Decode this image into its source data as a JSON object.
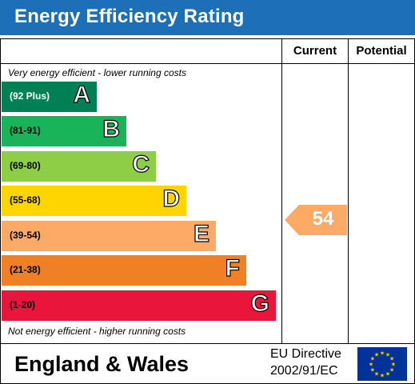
{
  "header": {
    "title": "Energy Efficiency Rating"
  },
  "columns": {
    "current": "Current",
    "potential": "Potential"
  },
  "captions": {
    "top": "Very energy efficient - lower running costs",
    "bottom": "Not energy efficient - higher running costs"
  },
  "bands": [
    {
      "range": "(92 Plus)",
      "letter": "A",
      "color": "#008054"
    },
    {
      "range": "(81-91)",
      "letter": "B",
      "color": "#19b459"
    },
    {
      "range": "(69-80)",
      "letter": "C",
      "color": "#8dce46"
    },
    {
      "range": "(55-68)",
      "letter": "D",
      "color": "#ffd500"
    },
    {
      "range": "(39-54)",
      "letter": "E",
      "color": "#fcaa65"
    },
    {
      "range": "(21-38)",
      "letter": "F",
      "color": "#ef8023"
    },
    {
      "range": "(1-20)",
      "letter": "G",
      "color": "#e9153b"
    }
  ],
  "current_rating": {
    "value": "54",
    "color": "#fcaa65"
  },
  "footer": {
    "region": "England & Wales",
    "directive_line1": "EU Directive",
    "directive_line2": "2002/91/EC"
  },
  "colors": {
    "header": "#1d6fb8",
    "eu_flag": "#003399",
    "eu_stars": "#ffcc00"
  }
}
